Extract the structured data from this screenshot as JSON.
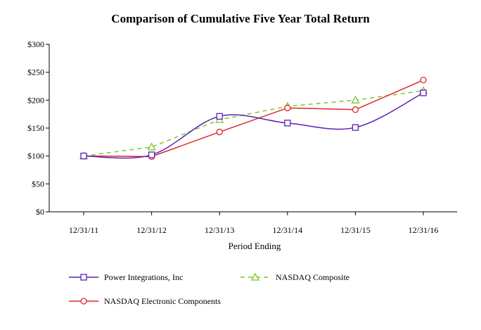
{
  "chart_data": {
    "type": "line",
    "title": "Comparison of Cumulative Five Year Total Return",
    "xlabel": "Period Ending",
    "ylabel": "",
    "categories": [
      "12/31/11",
      "12/31/12",
      "12/31/13",
      "12/31/14",
      "12/31/15",
      "12/31/16"
    ],
    "yticks": [
      "$0",
      "$50",
      "$100",
      "$150",
      "$200",
      "$250",
      "$300"
    ],
    "ylim": [
      0,
      300
    ],
    "grid": false,
    "legend_placement": "bottom",
    "series": [
      {
        "name": "Power Integrations, Inc",
        "values": [
          100,
          102,
          171,
          159,
          151,
          213
        ],
        "color": "#5b21b6",
        "marker": "square",
        "dash": "solid",
        "smooth": true
      },
      {
        "name": "NASDAQ Composite",
        "values": [
          100,
          116,
          165,
          189,
          200,
          217
        ],
        "color": "#7cc62b",
        "marker": "triangle",
        "dash": "dashed",
        "smooth": false
      },
      {
        "name": "NASDAQ Electronic Components",
        "values": [
          100,
          99,
          143,
          186,
          183,
          236
        ],
        "color": "#e0272b",
        "marker": "circle",
        "dash": "solid",
        "smooth": false
      }
    ]
  }
}
